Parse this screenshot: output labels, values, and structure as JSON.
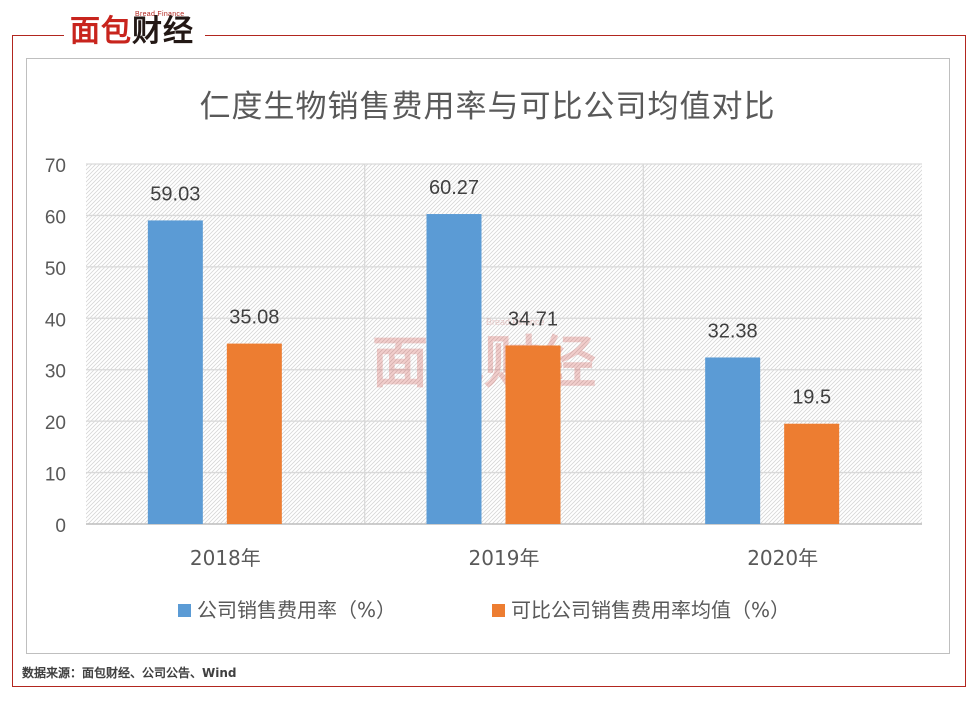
{
  "logo": {
    "sub": "Bread Finance",
    "main_red": "面包",
    "main_dark": "财经"
  },
  "watermark": {
    "sub": "Bread Finance",
    "main": "面包财经"
  },
  "source": "数据来源：面包财经、公司公告、Wind",
  "colors": {
    "series1": "#5b9bd5",
    "series2": "#ed7d31",
    "frame": "#b2261f"
  },
  "chart_data": {
    "type": "bar",
    "title": "仁度生物销售费用率与可比公司均值对比",
    "categories": [
      "2018年",
      "2019年",
      "2020年"
    ],
    "series": [
      {
        "name": "公司销售费用率（%）",
        "values": [
          59.03,
          60.27,
          32.38
        ],
        "labels": [
          "59.03",
          "60.27",
          "32.38"
        ],
        "color": "#5b9bd5"
      },
      {
        "name": "可比公司销售费用率均值（%）",
        "values": [
          35.08,
          34.71,
          19.5
        ],
        "labels": [
          "35.08",
          "34.71",
          "19.5"
        ],
        "color": "#ed7d31"
      }
    ],
    "yticks": [
      "0",
      "10",
      "20",
      "30",
      "40",
      "50",
      "60",
      "70"
    ],
    "ylim": [
      0,
      70
    ],
    "grid": true,
    "legend": "bottom",
    "xlabel": "",
    "ylabel": ""
  }
}
